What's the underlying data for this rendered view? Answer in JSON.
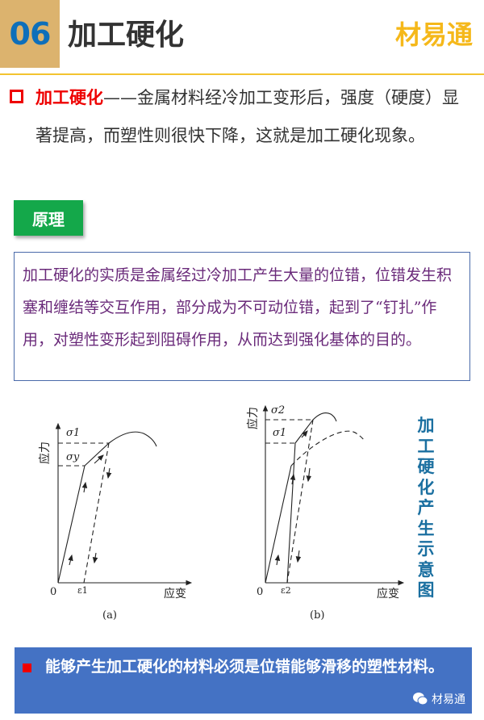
{
  "header": {
    "number": "06",
    "title": "加工硬化",
    "brand": "材易通"
  },
  "intro": {
    "term": "加工硬化",
    "text": "——金属材料经冷加工变形后，强度（硬度）显著提高，而塑性则很快下降，这就是加工硬化现象。"
  },
  "principle": {
    "tag": "原理",
    "text": "加工硬化的实质是金属经过冷加工产生大量的位错，位错发生积塞和缠结等交互作用，部分成为不可动位错，起到了“钉扎”作用，对塑性变形起到阻碍作用，从而达到强化基体的目的。"
  },
  "figure": {
    "side_title": "加工硬化产生示意图",
    "a": {
      "ylabel": "应力",
      "xlabel": "应变",
      "origin": "0",
      "sigma1": "σ1",
      "sigmay": "σy",
      "eps": "ε1",
      "caption": "(a)"
    },
    "b": {
      "ylabel": "应力",
      "xlabel": "应变",
      "origin": "0",
      "sigma2": "σ2",
      "sigma1": "σ1",
      "eps": "ε2",
      "caption": "(b)"
    }
  },
  "footer": {
    "text": "能够产生加工硬化的材料必须是位错能够滑移的塑性材料。",
    "watermark": "材易通",
    "watermark_icon": "wechat-icon"
  },
  "colors": {
    "accent_gold": "#dcb36e",
    "number_blue": "#0e6fba",
    "brand_yellow": "#f5b81a",
    "term_red": "#e00000",
    "tag_green": "#14a84a",
    "principle_purple": "#6a2a7a",
    "footer_blue": "#4472c4",
    "side_title_blue": "#1a6fa0"
  }
}
